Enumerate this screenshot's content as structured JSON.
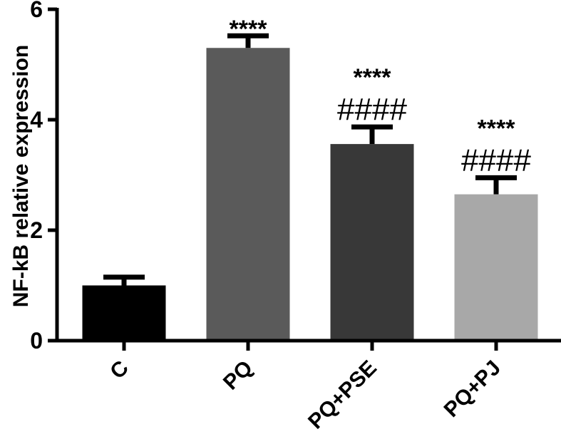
{
  "chart_data": {
    "type": "bar",
    "title": "",
    "xlabel": "",
    "ylabel": "NF-kB relative expression",
    "ylim": [
      0,
      6
    ],
    "yticks": [
      0,
      2,
      4,
      6
    ],
    "grid": false,
    "legend": null,
    "categories": [
      "C",
      "PQ",
      "PQ+PSE",
      "PQ+PJ"
    ],
    "values": [
      1.0,
      5.3,
      3.56,
      2.65
    ],
    "error_upper": [
      0.15,
      0.22,
      0.31,
      0.3
    ],
    "colors": [
      "#000000",
      "#5a5a5a",
      "#383838",
      "#a8a8a8"
    ],
    "annotations": [
      {
        "category": "C",
        "stars": "",
        "hashes": ""
      },
      {
        "category": "PQ",
        "stars": "****",
        "hashes": ""
      },
      {
        "category": "PQ+PSE",
        "stars": "****",
        "hashes": "####"
      },
      {
        "category": "PQ+PJ",
        "stars": "****",
        "hashes": "####"
      }
    ]
  }
}
